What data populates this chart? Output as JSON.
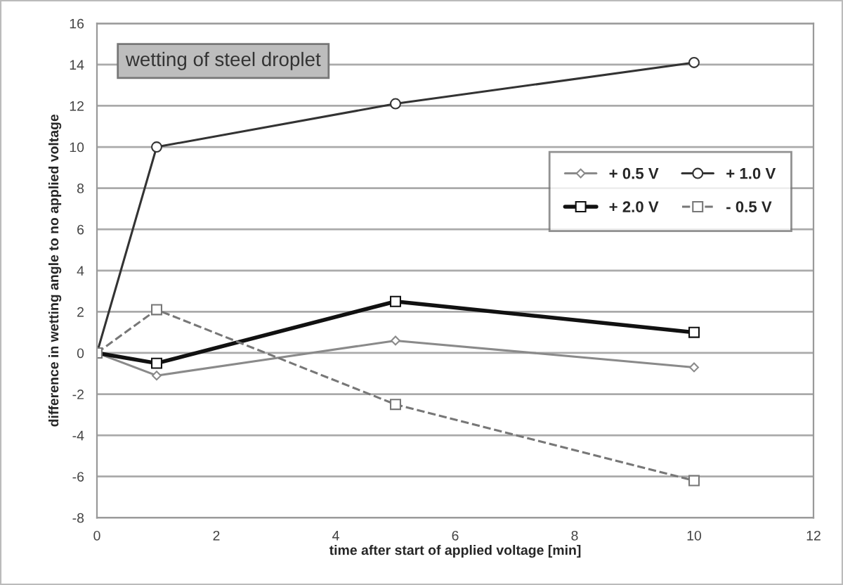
{
  "chart_data": {
    "type": "line",
    "title": "wetting of steel droplet",
    "xlabel": "time after start of applied voltage [min]",
    "ylabel": "difference in wetting angle to no applied voltage",
    "x": [
      0,
      1,
      5,
      10
    ],
    "series": [
      {
        "name": "+ 0.5 V",
        "color": "#8a8a8a",
        "values": [
          0,
          -1.1,
          0.6,
          -0.7
        ],
        "marker": "diamond"
      },
      {
        "name": "+ 1.0 V",
        "color": "#333333",
        "values": [
          0,
          10,
          12.1,
          14.1
        ],
        "marker": "circle"
      },
      {
        "name": "+ 2.0 V",
        "color": "#111111",
        "values": [
          0,
          -0.5,
          2.5,
          1.0
        ],
        "marker": "square"
      },
      {
        "name": "- 0.5 V",
        "color": "#777777",
        "values": [
          0,
          2.1,
          -2.5,
          -6.2
        ],
        "marker": "square",
        "line_style": "dashed"
      }
    ],
    "xlim": [
      0,
      12
    ],
    "xticks": [
      0,
      2,
      4,
      6,
      8,
      10,
      12
    ],
    "ylim": [
      -8,
      16
    ],
    "yticks": [
      -8,
      -6,
      -4,
      -2,
      0,
      2,
      4,
      6,
      8,
      10,
      12,
      14,
      16
    ],
    "grid": "y",
    "legend": "right",
    "line_style": "solid"
  }
}
